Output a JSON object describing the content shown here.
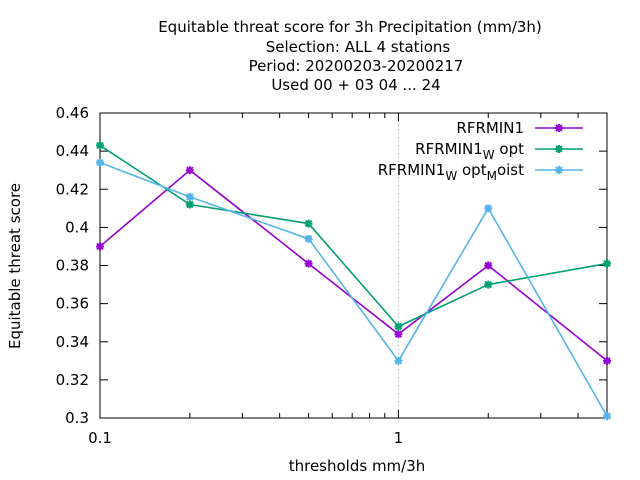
{
  "chart_data": {
    "type": "line",
    "title": [
      "Equitable threat score  for 3h Precipitation (mm/3h)",
      "Selection: ALL      4 stations",
      "Period: 20200203-20200217",
      "Used  00 + 03 04 ... 24"
    ],
    "xlabel": "thresholds mm/3h",
    "ylabel": "Equitable threat score",
    "x_scale": "log",
    "xlim": [
      0.1,
      5
    ],
    "ylim": [
      0.3,
      0.46
    ],
    "x_ticks": [
      {
        "value": 0.1,
        "label": "0.1"
      },
      {
        "value": 1,
        "label": "1"
      }
    ],
    "y_ticks": [
      0.3,
      0.32,
      0.34,
      0.36,
      0.38,
      0.4,
      0.42,
      0.44,
      0.46
    ],
    "y_tick_labels": [
      "0.3",
      "0.32",
      "0.34",
      "0.36",
      "0.38",
      "0.4",
      "0.42",
      "0.44",
      "0.46"
    ],
    "grid": "x-only (vertical dotted line at 1)",
    "legend_position": "top-right",
    "x": [
      0.1,
      0.2,
      0.5,
      1,
      2,
      5
    ],
    "series": [
      {
        "name": "RFRMIN1",
        "name_parts": [
          {
            "t": "RFRMIN1"
          }
        ],
        "color": "#9400d3",
        "values": [
          0.39,
          0.43,
          0.381,
          0.344,
          0.38,
          0.33
        ]
      },
      {
        "name": "RFRMIN1_W opt",
        "name_parts": [
          {
            "t": "RFRMIN1"
          },
          {
            "t": "W",
            "sub": true
          },
          {
            "t": " opt"
          }
        ],
        "color": "#009e73",
        "values": [
          0.443,
          0.412,
          0.402,
          0.348,
          0.37,
          0.381
        ]
      },
      {
        "name": "RFRMIN1_W opt_M oist",
        "name_parts": [
          {
            "t": "RFRMIN1"
          },
          {
            "t": "W",
            "sub": true
          },
          {
            "t": " opt"
          },
          {
            "t": "M",
            "sub": true
          },
          {
            "t": "oist"
          }
        ],
        "color": "#56b4e9",
        "values": [
          0.434,
          0.416,
          0.394,
          0.33,
          0.41,
          0.301
        ]
      }
    ]
  }
}
